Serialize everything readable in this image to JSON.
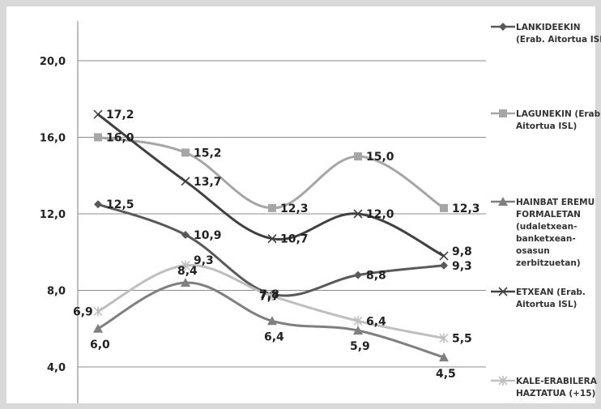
{
  "chart_data": {
    "type": "line",
    "x": [
      1,
      2,
      3,
      4,
      5
    ],
    "ylim": [
      3.0,
      21.5
    ],
    "yticks": [
      4.0,
      8.0,
      12.0,
      16.0,
      20.0
    ],
    "ytick_labels": [
      "4,0",
      "8,0",
      "12,0",
      "16,0",
      "20,0"
    ],
    "grid": true,
    "legend_position": "right",
    "series": [
      {
        "name": "LANKIDEEKIN (Erab. Aitortua ISL",
        "legend_lines": [
          "LANKIDEEKIN",
          "(Erab. Aitortua ISL"
        ],
        "marker": "diamond",
        "color": "#595959",
        "values": [
          12.5,
          10.9,
          7.8,
          8.8,
          9.3
        ],
        "labels": [
          "12,5",
          "10,9",
          "7,8",
          "8,8",
          "9,3"
        ]
      },
      {
        "name": "LAGUNEKIN (Erab. Aitortua ISL)",
        "legend_lines": [
          "LAGUNEKIN (Erab.",
          "Aitortua ISL)"
        ],
        "marker": "square",
        "color": "#a6a6a6",
        "values": [
          16.0,
          15.2,
          12.3,
          15.0,
          12.3
        ],
        "labels": [
          "16,0",
          "15,2",
          "12,3",
          "15,0",
          "12,3"
        ]
      },
      {
        "name": "HAINBAT EREMU FORMALETAN (udaletxean-banketxean-osasun zerbitzuetan)",
        "legend_lines": [
          "HAINBAT EREMU",
          "FORMALETAN",
          "(udaletxean-",
          "banketxean-",
          "osasun",
          "zerbitzuetan)"
        ],
        "marker": "triangle",
        "color": "#7f7f7f",
        "values": [
          6.0,
          8.4,
          6.4,
          5.9,
          4.5
        ],
        "labels": [
          "6,0",
          "8,4",
          "6,4",
          "5,9",
          "4,5"
        ]
      },
      {
        "name": "ETXEAN (Erab. Aitortua ISL)",
        "legend_lines": [
          "ETXEAN (Erab.",
          "Aitortua ISL)"
        ],
        "marker": "x",
        "color": "#404040",
        "values": [
          17.2,
          13.7,
          10.7,
          12.0,
          9.8
        ],
        "labels": [
          "17,2",
          "13,7",
          "10,7",
          "12,0",
          "9,8"
        ]
      },
      {
        "name": "KALE-ERABILERA HAZTATUA (+15)",
        "legend_lines": [
          "KALE-ERABILERA",
          "HAZTATUA (+15)"
        ],
        "marker": "star",
        "color": "#bfbfbf",
        "values": [
          6.9,
          9.3,
          7.7,
          6.4,
          5.5
        ],
        "labels": [
          "6,9",
          "9,3",
          "7,7",
          "6,4",
          "5,5"
        ]
      }
    ]
  }
}
